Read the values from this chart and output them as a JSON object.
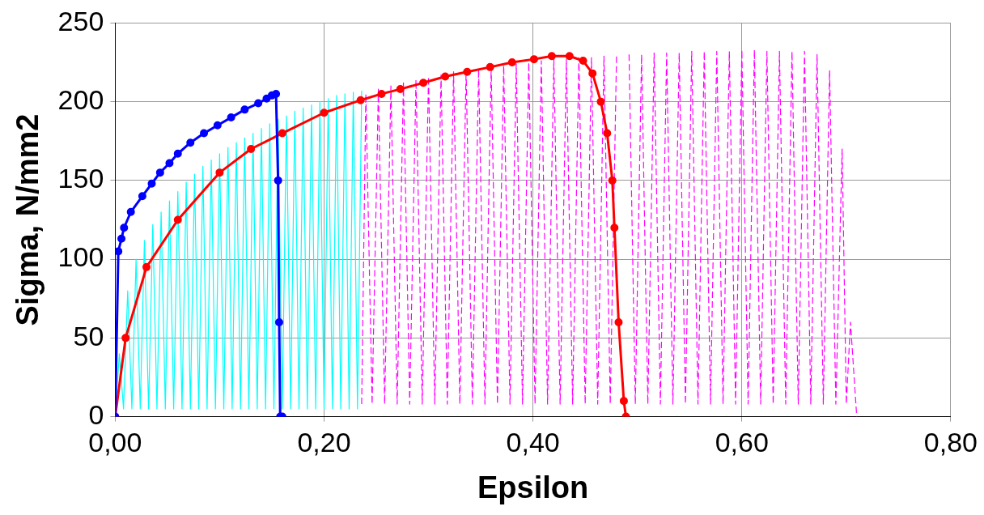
{
  "chart_data": {
    "type": "line",
    "xlabel": "Epsilon",
    "ylabel": "Sigma, N/mm2",
    "xlim": [
      0,
      0.8
    ],
    "ylim": [
      0,
      250
    ],
    "xticks": [
      {
        "value": 0,
        "label": "0,00"
      },
      {
        "value": 0.2,
        "label": "0,20"
      },
      {
        "value": 0.4,
        "label": "0,40"
      },
      {
        "value": 0.6,
        "label": "0,60"
      },
      {
        "value": 0.8,
        "label": "0,80"
      }
    ],
    "yticks": [
      0,
      50,
      100,
      150,
      200,
      250
    ],
    "grid": true,
    "legend": false,
    "series": [
      {
        "color": "#0000ff",
        "marker": "circle",
        "line_style": "solid",
        "x": [
          0,
          0.003,
          0.006,
          0.0085,
          0.015,
          0.026,
          0.035,
          0.043,
          0.052,
          0.06,
          0.072,
          0.085,
          0.098,
          0.111,
          0.124,
          0.137,
          0.145,
          0.15,
          0.154,
          0.156,
          0.157,
          0.158,
          0.16
        ],
        "values": [
          0,
          105,
          113,
          120,
          130,
          140,
          148,
          155,
          161,
          167,
          174,
          180,
          185,
          190,
          195,
          199,
          202,
          204,
          205,
          150,
          60,
          0,
          0
        ]
      },
      {
        "color": "#ff0000",
        "marker": "circle",
        "line_style": "solid",
        "x": [
          0,
          0.01,
          0.03,
          0.06,
          0.1,
          0.13,
          0.16,
          0.2,
          0.235,
          0.255,
          0.273,
          0.295,
          0.316,
          0.337,
          0.359,
          0.38,
          0.401,
          0.418,
          0.435,
          0.448,
          0.457,
          0.465,
          0.471,
          0.476,
          0.478,
          0.482,
          0.487,
          0.489
        ],
        "values": [
          0,
          50,
          95,
          125,
          155,
          170,
          180,
          193,
          201,
          205,
          208,
          212,
          216,
          219,
          222,
          225,
          227,
          229,
          229,
          226,
          218,
          200,
          180,
          150,
          120,
          60,
          10,
          0
        ]
      },
      {
        "color": "#00ffff",
        "marker": "none",
        "line_style": "solid",
        "x": [
          0,
          0.004,
          0.008,
          0.012,
          0.016,
          0.02,
          0.024,
          0.028,
          0.032,
          0.036,
          0.04,
          0.044,
          0.048,
          0.052,
          0.056,
          0.06,
          0.064,
          0.068,
          0.072,
          0.076,
          0.08,
          0.084,
          0.088,
          0.092,
          0.096,
          0.1,
          0.104,
          0.108,
          0.112,
          0.116,
          0.12,
          0.124,
          0.128,
          0.132,
          0.136,
          0.14,
          0.144,
          0.148,
          0.152,
          0.156,
          0.16,
          0.164,
          0.168,
          0.172,
          0.176,
          0.18,
          0.184,
          0.188,
          0.192,
          0.196,
          0.2,
          0.204,
          0.208,
          0.212,
          0.216,
          0.22,
          0.224,
          0.228,
          0.232,
          0.236
        ],
        "values": [
          0,
          40,
          5,
          80,
          5,
          100,
          5,
          112,
          5,
          122,
          5,
          130,
          5,
          137,
          5,
          143,
          5,
          149,
          5,
          154,
          5,
          159,
          5,
          163,
          5,
          167,
          5,
          171,
          5,
          174,
          5,
          177,
          5,
          180,
          5,
          183,
          5,
          186,
          5,
          189,
          5,
          191,
          5,
          194,
          5,
          196,
          5,
          198,
          5,
          200,
          5,
          202,
          5,
          204,
          5,
          205,
          5,
          206,
          5,
          207
        ]
      },
      {
        "color": "#ff00ff",
        "marker": "none",
        "line_style": "dashed",
        "x": [
          0.236,
          0.24,
          0.246,
          0.252,
          0.258,
          0.264,
          0.27,
          0.276,
          0.282,
          0.288,
          0.294,
          0.3,
          0.306,
          0.312,
          0.318,
          0.324,
          0.33,
          0.336,
          0.342,
          0.348,
          0.354,
          0.36,
          0.366,
          0.372,
          0.378,
          0.384,
          0.39,
          0.396,
          0.402,
          0.408,
          0.414,
          0.42,
          0.426,
          0.432,
          0.438,
          0.444,
          0.45,
          0.456,
          0.462,
          0.468,
          0.474,
          0.48,
          0.486,
          0.492,
          0.498,
          0.504,
          0.51,
          0.516,
          0.522,
          0.528,
          0.534,
          0.54,
          0.546,
          0.552,
          0.558,
          0.564,
          0.57,
          0.576,
          0.582,
          0.588,
          0.594,
          0.6,
          0.606,
          0.612,
          0.618,
          0.624,
          0.63,
          0.636,
          0.642,
          0.648,
          0.654,
          0.66,
          0.666,
          0.672,
          0.678,
          0.684,
          0.69,
          0.696,
          0.7,
          0.704,
          0.71
        ],
        "values": [
          8,
          205,
          8,
          208,
          8,
          210,
          8,
          212,
          8,
          214,
          8,
          216,
          8,
          217,
          8,
          219,
          8,
          220,
          8,
          221,
          8,
          222,
          8,
          223,
          8,
          224,
          8,
          225,
          8,
          226,
          8,
          227,
          8,
          227,
          8,
          228,
          8,
          228,
          8,
          229,
          8,
          229,
          null,
          230,
          8,
          230,
          8,
          231,
          8,
          231,
          8,
          231,
          8,
          232,
          8,
          232,
          8,
          232,
          8,
          232,
          8,
          233,
          8,
          233,
          8,
          232,
          8,
          232,
          8,
          232,
          8,
          232,
          8,
          230,
          8,
          220,
          8,
          170,
          8,
          60,
          0
        ]
      }
    ]
  }
}
